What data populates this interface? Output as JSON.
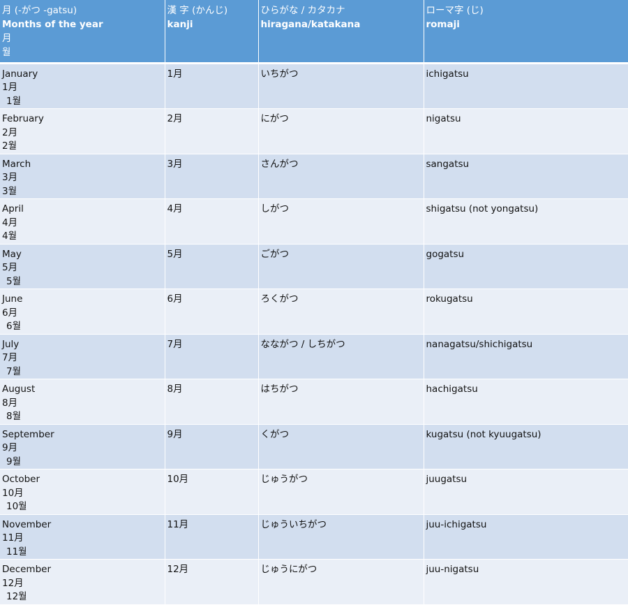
{
  "headers": {
    "col1": {
      "line1": "月 (-がつ -gatsu)",
      "line2": "Months of the year",
      "line3": "月",
      "line4": "월"
    },
    "col2": {
      "line1": "漢 字 (かんじ)",
      "line2": "kanji"
    },
    "col3": {
      "line1": "ひらがな / カタカナ",
      "line2": "hiragana/katakana"
    },
    "col4": {
      "line1": "ローマ字 (じ)",
      "line2": "romaji"
    }
  },
  "rows": [
    {
      "english": "January",
      "month_jp": "1月",
      "month_kr": " 1월",
      "kanji": "1月",
      "kana": "いちがつ",
      "romaji": "ichigatsu"
    },
    {
      "english": "February",
      "month_jp": "2月",
      "month_kr": "2월",
      "kanji": "2月",
      "kana": "にがつ",
      "romaji": "nigatsu"
    },
    {
      "english": "March",
      "month_jp": "3月",
      "month_kr": "3월",
      "kanji": "3月",
      "kana": "さんがつ",
      "romaji": "sangatsu"
    },
    {
      "english": "April",
      "month_jp": "4月",
      "month_kr": "4월",
      "kanji": "4月",
      "kana": "しがつ",
      "romaji": "shigatsu (not yongatsu)"
    },
    {
      "english": "May",
      "month_jp": "5月",
      "month_kr": " 5월",
      "kanji": "5月",
      "kana": "ごがつ",
      "romaji": "gogatsu"
    },
    {
      "english": "June",
      "month_jp": "6月",
      "month_kr": " 6월",
      "kanji": "6月",
      "kana": "ろくがつ",
      "romaji": "rokugatsu"
    },
    {
      "english": "July",
      "month_jp": "7月",
      "month_kr": " 7월",
      "kanji": "7月",
      "kana": "なながつ / しちがつ",
      "romaji": "nanagatsu/shichigatsu"
    },
    {
      "english": "August",
      "month_jp": "8月",
      "month_kr": " 8월",
      "kanji": "8月",
      "kana": "はちがつ",
      "romaji": "hachigatsu"
    },
    {
      "english": "September",
      "month_jp": "9月",
      "month_kr": " 9월",
      "kanji": "9月",
      "kana": "くがつ",
      "romaji": "kugatsu (not kyuugatsu)"
    },
    {
      "english": "October",
      "month_jp": "10月",
      "month_kr": " 10월",
      "kanji": "10月",
      "kana": "じゅうがつ",
      "romaji": "juugatsu"
    },
    {
      "english": "November",
      "month_jp": "11月",
      "month_kr": " 11월",
      "kanji": "11月",
      "kana": "じゅういちがつ",
      "romaji": "juu-ichigatsu"
    },
    {
      "english": "December",
      "month_jp": "12月",
      "month_kr": " 12월",
      "kanji": "12月",
      "kana": "じゅうにがつ",
      "romaji": "juu-nigatsu"
    }
  ]
}
